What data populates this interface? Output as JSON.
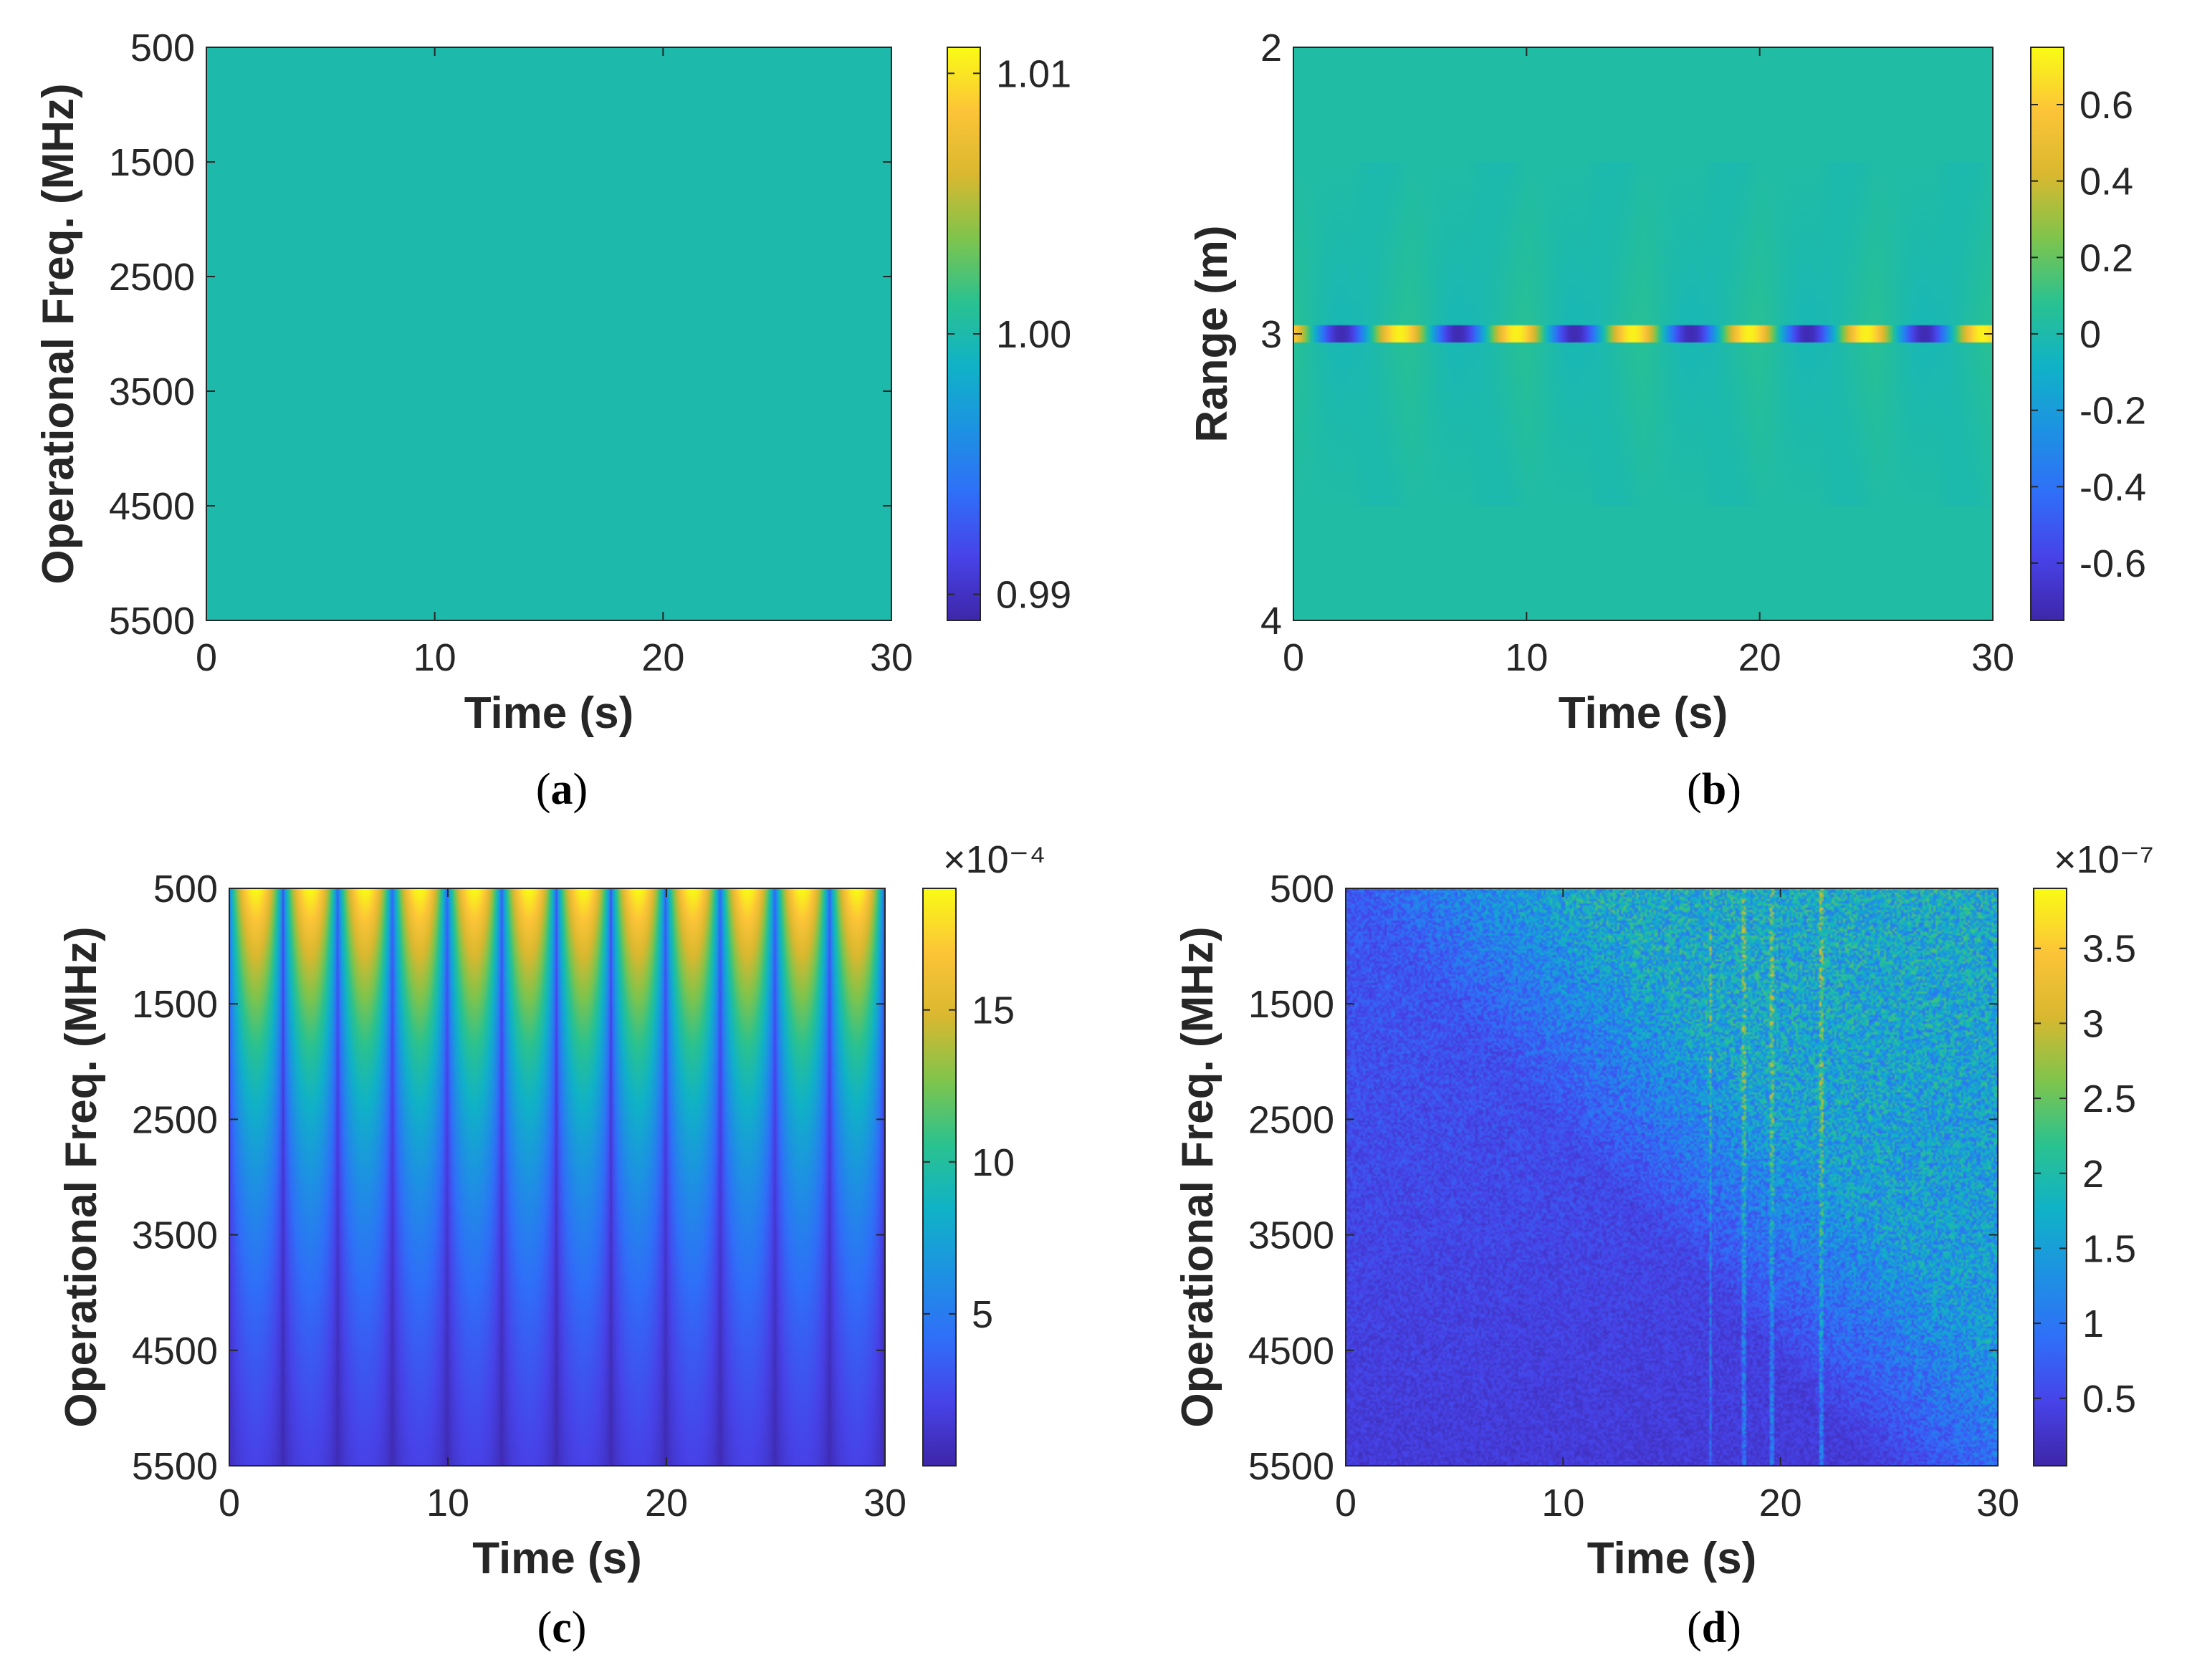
{
  "figure_title": "",
  "colors": {
    "colormap": [
      "#3e26a8",
      "#4743e9",
      "#2f6ff8",
      "#1d92e2",
      "#10b2c7",
      "#2ac28f",
      "#7fc44c",
      "#d9b82f",
      "#fcc438",
      "#f9fb15"
    ],
    "axis": "#262626",
    "background": "#ffffff"
  },
  "chart_data": [
    {
      "panel": "a",
      "caption": "(a)",
      "caption_letter": "a",
      "type": "heatmap",
      "description_values": "uniform field of 1.00",
      "xlabel": "Time (s)",
      "ylabel": "Operational Freq. (MHz)",
      "xlim": [
        0,
        30
      ],
      "ylim": [
        500,
        5500
      ],
      "y_reversed": true,
      "xticks": [
        0,
        10,
        20,
        30
      ],
      "xtick_labels": [
        "0",
        "10",
        "20",
        "30"
      ],
      "yticks": [
        500,
        1500,
        2500,
        3500,
        4500,
        5500
      ],
      "ytick_labels": [
        "500",
        "1500",
        "2500",
        "3500",
        "4500",
        "5500"
      ],
      "colorbar": {
        "clim": [
          0.989,
          1.011
        ],
        "ticks": [
          0.99,
          1.0,
          1.01
        ],
        "tick_labels": [
          "0.99",
          "1.00",
          "1.01"
        ],
        "exponent_label": ""
      },
      "field": {
        "kind": "constant",
        "value": 1.0
      }
    },
    {
      "panel": "b",
      "caption": "(b)",
      "caption_letter": "b",
      "type": "heatmap",
      "xlabel": "Time (s)",
      "ylabel": "Range (m)",
      "xlim": [
        0,
        30
      ],
      "ylim": [
        2,
        4
      ],
      "y_reversed": true,
      "xticks": [
        0,
        10,
        20,
        30
      ],
      "xtick_labels": [
        "0",
        "10",
        "20",
        "30"
      ],
      "yticks": [
        2,
        3,
        4
      ],
      "ytick_labels": [
        "2",
        "3",
        "4"
      ],
      "colorbar": {
        "clim": [
          -0.75,
          0.75
        ],
        "ticks": [
          -0.6,
          -0.4,
          -0.2,
          0,
          0.2,
          0.4,
          0.6
        ],
        "tick_labels": [
          "-0.6",
          "-0.4",
          "-0.2",
          "0",
          "0.2",
          "0.4",
          "0.6"
        ],
        "exponent_label": ""
      },
      "field": {
        "kind": "range_line",
        "center": 3.0,
        "line_halfwidth": 0.03,
        "amplitude": 0.72,
        "period_s": 5.0,
        "background": 0.02,
        "side_lobe_extent": 0.6,
        "side_lobe_amplitude": 0.05
      }
    },
    {
      "panel": "c",
      "caption": "(c)",
      "caption_letter": "c",
      "type": "heatmap",
      "xlabel": "Time (s)",
      "ylabel": "Operational Freq. (MHz)",
      "xlim": [
        0,
        30
      ],
      "ylim": [
        500,
        5500
      ],
      "y_reversed": true,
      "xticks": [
        0,
        10,
        20,
        30
      ],
      "xtick_labels": [
        "0",
        "10",
        "20",
        "30"
      ],
      "yticks": [
        500,
        1500,
        2500,
        3500,
        4500,
        5500
      ],
      "ytick_labels": [
        "500",
        "1500",
        "2500",
        "3500",
        "4500",
        "5500"
      ],
      "colorbar": {
        "clim": [
          0,
          19
        ],
        "ticks": [
          5,
          10,
          15
        ],
        "tick_labels": [
          "5",
          "10",
          "15"
        ],
        "exponent_label": "×10⁻⁴"
      },
      "field": {
        "kind": "periodic_stripes",
        "peak": 18.5,
        "period_s": 2.5,
        "freq_min_mhz": 500,
        "freq_max_mhz": 5500,
        "decay": 2.2
      }
    },
    {
      "panel": "d",
      "caption": "(d)",
      "caption_letter": "d",
      "type": "heatmap",
      "xlabel": "Time (s)",
      "ylabel": "Operational Freq. (MHz)",
      "xlim": [
        0,
        30
      ],
      "ylim": [
        500,
        5500
      ],
      "y_reversed": true,
      "xticks": [
        0,
        10,
        20,
        30
      ],
      "xtick_labels": [
        "0",
        "10",
        "20",
        "30"
      ],
      "yticks": [
        500,
        1500,
        2500,
        3500,
        4500,
        5500
      ],
      "ytick_labels": [
        "500",
        "1500",
        "2500",
        "3500",
        "4500",
        "5500"
      ],
      "colorbar": {
        "clim": [
          0.05,
          3.9
        ],
        "ticks": [
          0.5,
          1,
          1.5,
          2,
          2.5,
          3,
          3.5
        ],
        "tick_labels": [
          "0.5",
          "1",
          "1.5",
          "2",
          "2.5",
          "3",
          "3.5"
        ],
        "exponent_label": "×10⁻⁷"
      },
      "field": {
        "kind": "noise_wedge",
        "base": 0.35,
        "high": 1.6,
        "vertical_lines_s": [
          16.8,
          18.3,
          19.6,
          21.9
        ],
        "seed": 7
      }
    }
  ]
}
